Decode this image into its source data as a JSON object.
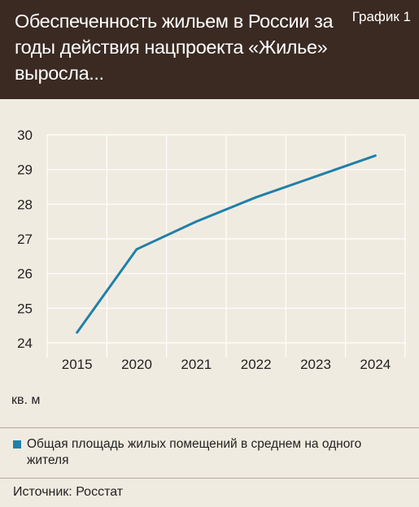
{
  "header": {
    "title": "Обеспеченность жильем в России за годы действия нацпроекта «Жилье» выросла...",
    "chart_label": "График 1"
  },
  "unit_label": "кв. м",
  "legend": {
    "text": "Общая площадь жилых помещений в среднем на одного жителя"
  },
  "source": "Источник: Росстат",
  "colors": {
    "header_bg": "#3a2a22",
    "background": "#f0ebe0",
    "line": "#1f80a9",
    "grid": "#ffffff"
  },
  "chart_data": {
    "type": "line",
    "categories": [
      "2015",
      "2020",
      "2021",
      "2022",
      "2023",
      "2024"
    ],
    "series": [
      {
        "name": "Общая площадь жилых помещений в среднем на одного жителя",
        "values": [
          24.3,
          26.7,
          27.5,
          28.2,
          28.8,
          29.4
        ]
      }
    ],
    "ylim": [
      24,
      30
    ],
    "yticks": [
      "24",
      "25",
      "26",
      "27",
      "28",
      "29",
      "30"
    ],
    "ylabel": "кв. м",
    "grid": true
  }
}
